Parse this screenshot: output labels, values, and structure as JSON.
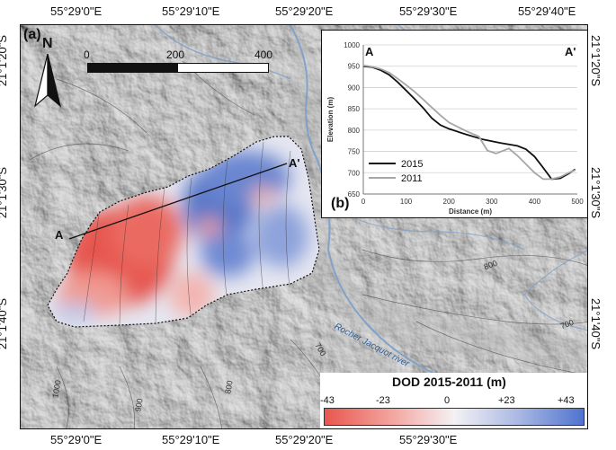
{
  "panel_labels": {
    "a": "(a)",
    "b": "(b)"
  },
  "top_longitudes": [
    "55°29'0\"E",
    "55°29'10\"E",
    "55°29'20\"E",
    "55°29'30\"E",
    "55°29'40\"E"
  ],
  "bottom_longitudes": [
    "55°29'0\"E",
    "55°29'10\"E",
    "55°29'20\"E",
    "55°29'30\"E"
  ],
  "left_latitudes": [
    "21°1'20\"S",
    "21°1'30\"S",
    "21°1'40\"S"
  ],
  "right_latitudes": [
    "21°1'20\"S",
    "21°1'30\"S",
    "21°1'40\"S"
  ],
  "north_arrow": {
    "label": "N",
    "icon": "north-arrow-icon"
  },
  "scale_bar": {
    "ticks": [
      "0",
      "200",
      "400 m"
    ]
  },
  "profile_labels": {
    "start": "A",
    "end": "A'"
  },
  "river_label": "Rocher Jacquot river",
  "contour_labels": [
    "800",
    "700",
    "1000",
    "900",
    "800",
    "700"
  ],
  "legend": {
    "title": "DOD 2015-2011 (m)",
    "ticks": [
      "-43",
      "-23",
      "0",
      "+23",
      "+43"
    ],
    "colors": [
      "#e8574f",
      "#f3a29c",
      "#f4f1f4",
      "#a9b8e3",
      "#4f73cf"
    ]
  },
  "chart_data": {
    "type": "line",
    "title": "",
    "xlabel": "Distance (m)",
    "ylabel": "Elevation (m)",
    "xlim": [
      0,
      500
    ],
    "ylim": [
      650,
      1000
    ],
    "xticks": [
      "0",
      "100",
      "200",
      "300",
      "400",
      "500"
    ],
    "yticks": [
      "650",
      "700",
      "750",
      "800",
      "850",
      "900",
      "950",
      "1000"
    ],
    "end_labels": {
      "start": "A",
      "end": "A'"
    },
    "grid": true,
    "legend_position": "bottom-left",
    "series": [
      {
        "name": "2015",
        "color": "#111111",
        "x": [
          0,
          20,
          40,
          60,
          80,
          100,
          120,
          140,
          160,
          180,
          200,
          240,
          280,
          320,
          360,
          380,
          400,
          420,
          440,
          460,
          480,
          495
        ],
        "y": [
          950,
          948,
          941,
          930,
          913,
          893,
          873,
          852,
          828,
          812,
          803,
          790,
          778,
          770,
          763,
          755,
          738,
          712,
          685,
          687,
          698,
          708
        ]
      },
      {
        "name": "2011",
        "color": "#a6a6a6",
        "x": [
          0,
          20,
          40,
          60,
          80,
          100,
          120,
          140,
          160,
          180,
          200,
          240,
          270,
          290,
          310,
          340,
          360,
          380,
          400,
          420,
          440,
          460,
          480,
          495
        ],
        "y": [
          952,
          949,
          944,
          935,
          921,
          906,
          890,
          872,
          853,
          835,
          818,
          798,
          785,
          752,
          745,
          757,
          740,
          720,
          700,
          685,
          685,
          690,
          700,
          706
        ]
      }
    ]
  }
}
